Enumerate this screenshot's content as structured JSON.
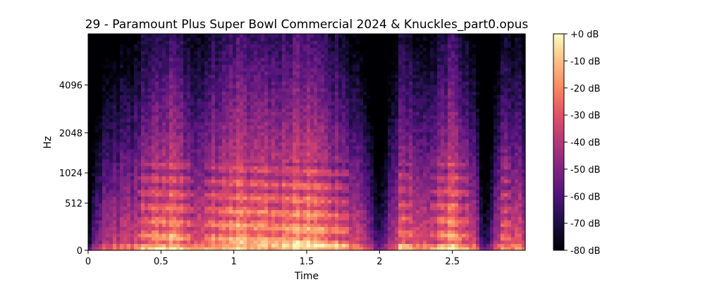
{
  "chart_data": {
    "type": "heatmap",
    "title": "29 - Paramount Plus Super Bowl Commercial 2024 & Knuckles_part0.opus",
    "xlabel": "Time",
    "ylabel": "Hz",
    "x_ticks": [
      {
        "value": 0,
        "label": "0"
      },
      {
        "value": 0.5,
        "label": "0.5"
      },
      {
        "value": 1,
        "label": "1"
      },
      {
        "value": 1.5,
        "label": "1.5"
      },
      {
        "value": 2,
        "label": "2"
      },
      {
        "value": 2.5,
        "label": "2.5"
      }
    ],
    "y_scale": "mel",
    "y_ticks": [
      {
        "value": 0,
        "label": "0"
      },
      {
        "value": 512,
        "label": "512"
      },
      {
        "value": 1024,
        "label": "1024"
      },
      {
        "value": 2048,
        "label": "2048"
      },
      {
        "value": 4096,
        "label": "4096"
      }
    ],
    "xlim": [
      0,
      3.0
    ],
    "ylim_hz": [
      0,
      8000
    ],
    "colormap": "magma",
    "colorbar": {
      "range_db": [
        -80,
        0
      ],
      "ticks": [
        {
          "value": 0,
          "label": "+0 dB"
        },
        {
          "value": -10,
          "label": "-10 dB"
        },
        {
          "value": -20,
          "label": "-20 dB"
        },
        {
          "value": -30,
          "label": "-30 dB"
        },
        {
          "value": -40,
          "label": "-40 dB"
        },
        {
          "value": -50,
          "label": "-50 dB"
        },
        {
          "value": -60,
          "label": "-60 dB"
        },
        {
          "value": -70,
          "label": "-70 dB"
        },
        {
          "value": -80,
          "label": "-80 dB"
        }
      ]
    },
    "energy_profile_db": [
      {
        "t": 0.0,
        "db": -70
      },
      {
        "t": 0.05,
        "db": -45
      },
      {
        "t": 0.15,
        "db": -35
      },
      {
        "t": 0.3,
        "db": -30
      },
      {
        "t": 0.45,
        "db": -15
      },
      {
        "t": 0.6,
        "db": -12
      },
      {
        "t": 0.75,
        "db": -28
      },
      {
        "t": 0.85,
        "db": -20
      },
      {
        "t": 1.0,
        "db": -10
      },
      {
        "t": 1.15,
        "db": -12
      },
      {
        "t": 1.3,
        "db": -15
      },
      {
        "t": 1.5,
        "db": -8
      },
      {
        "t": 1.65,
        "db": -18
      },
      {
        "t": 1.75,
        "db": -22
      },
      {
        "t": 1.9,
        "db": -35
      },
      {
        "t": 2.0,
        "db": -60
      },
      {
        "t": 2.15,
        "db": -20
      },
      {
        "t": 2.3,
        "db": -30
      },
      {
        "t": 2.5,
        "db": -12
      },
      {
        "t": 2.65,
        "db": -30
      },
      {
        "t": 2.72,
        "db": -65
      },
      {
        "t": 2.85,
        "db": -22
      },
      {
        "t": 3.0,
        "db": -30
      }
    ]
  }
}
